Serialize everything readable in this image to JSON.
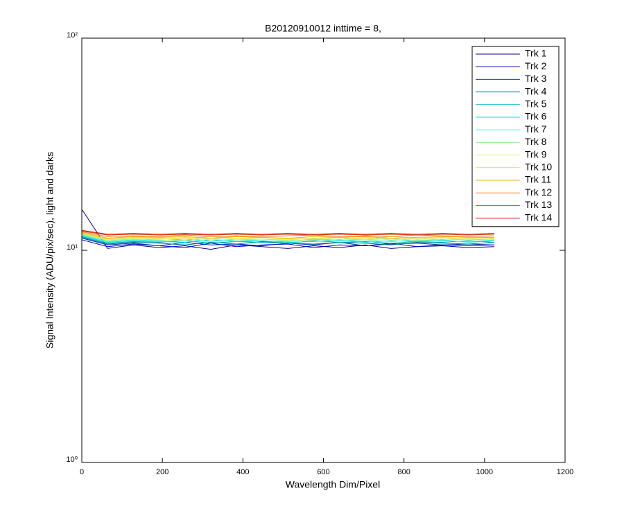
{
  "chart_data": {
    "type": "line",
    "title": "B20120910012 inttime = 8,",
    "x_label": "Wavelength Dim/Pixel",
    "y_label": "Signal Intensity (ADU/pix/sec), light and darks",
    "x": [
      1,
      64,
      128,
      192,
      256,
      320,
      384,
      448,
      512,
      576,
      640,
      704,
      768,
      832,
      896,
      960,
      1024
    ],
    "xlim": [
      0,
      1200
    ],
    "xticks": [
      0,
      200,
      400,
      600,
      800,
      1000,
      1200
    ],
    "ylim": [
      1,
      100
    ],
    "yscale": "log",
    "yticks": [
      {
        "value": 1,
        "label": "10⁰"
      },
      {
        "value": 10,
        "label": "10¹"
      },
      {
        "value": 100,
        "label": "10²"
      }
    ],
    "grid": false,
    "legend": "top-right",
    "series": [
      {
        "name": "Trk 1",
        "color": "#00008f",
        "values": [
          15.5,
          10.2,
          10.6,
          10.3,
          10.5,
          10.1,
          10.6,
          10.4,
          10.2,
          10.5,
          10.3,
          10.6,
          10.2,
          10.4,
          10.5,
          10.3,
          10.4
        ]
      },
      {
        "name": "Trk 2",
        "color": "#0000c8",
        "values": [
          11.2,
          10.4,
          10.7,
          10.5,
          10.3,
          10.8,
          10.4,
          10.6,
          10.7,
          10.3,
          10.6,
          10.5,
          10.8,
          10.4,
          10.6,
          10.5,
          10.6
        ]
      },
      {
        "name": "Trk 3",
        "color": "#0030b0",
        "values": [
          11.4,
          10.6,
          10.8,
          10.5,
          10.9,
          10.6,
          10.7,
          10.5,
          10.8,
          10.6,
          10.9,
          10.5,
          10.7,
          10.8,
          10.6,
          10.7,
          10.6
        ]
      },
      {
        "name": "Trk 4",
        "color": "#007090",
        "values": [
          11.5,
          10.7,
          10.9,
          10.8,
          10.6,
          10.9,
          10.7,
          11.0,
          10.8,
          10.7,
          10.9,
          10.8,
          10.6,
          10.9,
          10.8,
          10.7,
          10.9
        ]
      },
      {
        "name": "Trk 5",
        "color": "#00b0c0",
        "values": [
          11.6,
          10.8,
          11.0,
          10.9,
          11.1,
          10.8,
          11.0,
          10.9,
          10.8,
          11.1,
          10.9,
          11.0,
          10.8,
          11.0,
          10.9,
          11.1,
          10.9
        ]
      },
      {
        "name": "Trk 6",
        "color": "#00e0e0",
        "values": [
          11.7,
          10.9,
          11.1,
          11.0,
          10.9,
          11.2,
          11.0,
          11.1,
          10.9,
          11.0,
          11.2,
          10.9,
          11.1,
          11.0,
          11.2,
          10.9,
          11.1
        ]
      },
      {
        "name": "Trk 7",
        "color": "#40f0d0",
        "values": [
          11.8,
          11.0,
          11.2,
          11.1,
          11.3,
          11.0,
          11.2,
          11.1,
          11.0,
          11.3,
          11.1,
          11.2,
          11.0,
          11.2,
          11.1,
          11.0,
          11.2
        ]
      },
      {
        "name": "Trk 8",
        "color": "#90f090",
        "values": [
          11.9,
          11.1,
          11.3,
          11.2,
          11.1,
          11.4,
          11.2,
          11.3,
          11.1,
          11.2,
          11.3,
          11.2,
          11.4,
          11.1,
          11.3,
          11.2,
          11.3
        ]
      },
      {
        "name": "Trk 9",
        "color": "#d0f060",
        "values": [
          12.0,
          11.2,
          11.4,
          11.3,
          11.5,
          11.2,
          11.4,
          11.3,
          11.2,
          11.4,
          11.3,
          11.5,
          11.2,
          11.4,
          11.3,
          11.4,
          11.3
        ]
      },
      {
        "name": "Trk 10",
        "color": "#f0e020",
        "values": [
          12.0,
          11.3,
          11.5,
          11.4,
          11.3,
          11.6,
          11.4,
          11.5,
          11.3,
          11.4,
          11.5,
          11.3,
          11.6,
          11.4,
          11.5,
          11.3,
          11.4
        ]
      },
      {
        "name": "Trk 11",
        "color": "#f0b000",
        "values": [
          12.1,
          11.4,
          11.6,
          11.5,
          11.6,
          11.4,
          11.6,
          11.5,
          11.4,
          11.6,
          11.5,
          11.6,
          11.4,
          11.5,
          11.6,
          11.5,
          11.5
        ]
      },
      {
        "name": "Trk 12",
        "color": "#f08030",
        "values": [
          12.2,
          11.6,
          11.7,
          11.6,
          11.8,
          11.6,
          11.7,
          11.6,
          11.7,
          11.8,
          11.6,
          11.7,
          11.6,
          11.8,
          11.7,
          11.6,
          11.7
        ]
      },
      {
        "name": "Trk 13",
        "color": "#e04010",
        "values": [
          12.3,
          11.8,
          11.9,
          11.8,
          11.9,
          11.8,
          11.9,
          11.8,
          11.9,
          11.8,
          11.9,
          11.8,
          11.9,
          11.8,
          11.9,
          11.8,
          11.9
        ]
      },
      {
        "name": "Trk 14",
        "color": "#d00000",
        "values": [
          12.4,
          11.9,
          12.0,
          11.9,
          12.0,
          11.9,
          12.0,
          11.9,
          12.0,
          11.9,
          12.0,
          11.9,
          12.0,
          11.9,
          12.0,
          11.9,
          12.0
        ]
      }
    ]
  }
}
